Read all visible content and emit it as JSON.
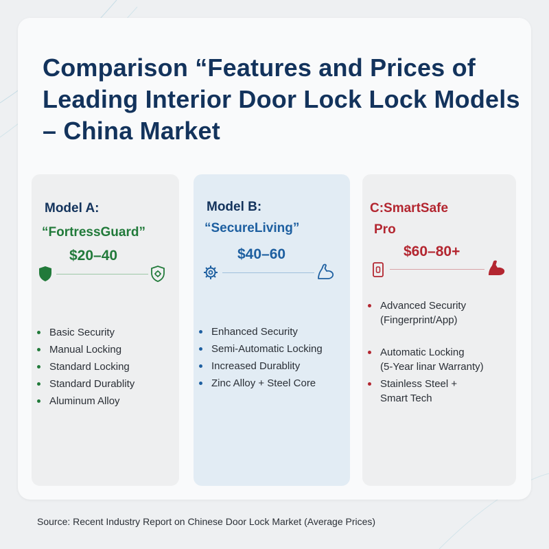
{
  "title": "Comparison “Features and Prices of Leading Interior Door Lock Lock Models – China Market",
  "colors": {
    "green": "#217a3a",
    "blue": "#1d5fa0",
    "red": "#b32630",
    "navy": "#13335c"
  },
  "cards": [
    {
      "name_line1": "Model A:",
      "name_line2": "“FortressGuard”",
      "price": "$20–40",
      "icon_left": "shield-icon",
      "icon_right": "shield-gear-icon",
      "features": [
        "Basic Security",
        "Manual Locking",
        "Standard Locking",
        "Standard Durablity",
        "Aluminum Alloy"
      ]
    },
    {
      "name_line1": "Model B:",
      "name_line2": "“SecureLiving”",
      "price": "$40–60",
      "icon_left": "gear-icon",
      "icon_right": "flexed-arm-icon",
      "features": [
        "Enhanced Security",
        "Semi-Automatic Locking",
        "Increased Durablity",
        "Zinc Alloy + Steel Core"
      ]
    },
    {
      "name_line1": "C:SmartSafe",
      "name_line2": "Pro",
      "price": "$60–80+",
      "icon_left": "smart-lock-icon",
      "icon_right": "flexed-arm-icon",
      "features": [
        [
          "Advanced Security",
          "(Fingerprint/App)"
        ],
        [
          "Automatic Locking",
          "(5-Year linar Warranty)"
        ],
        [
          "Stainless Steel +",
          "Smart Tech"
        ]
      ]
    }
  ],
  "source": "Source: Recent Industry Report on Chinese Door Lock Market (Average Prices)"
}
